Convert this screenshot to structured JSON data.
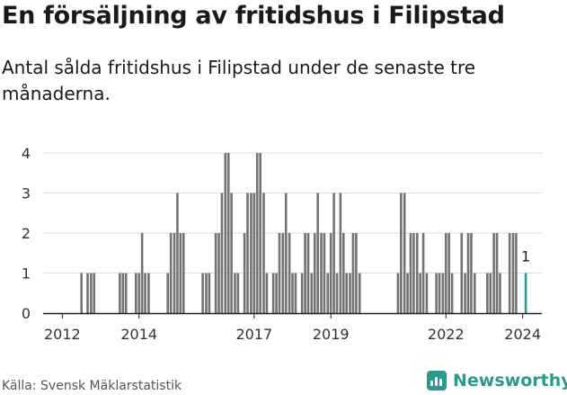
{
  "title": "En försäljning av fritidshus i Filipstad",
  "subtitle": "Antal sålda fritidshus i Filipstad under de senaste tre månaderna.",
  "source": "Källa: Svensk Mäklarstatistik",
  "brand": "Newsworthy",
  "colors": {
    "bar": "#737373",
    "highlight": "#2a9a8e",
    "axis": "#222222",
    "grid": "#dddddd",
    "brand": "#2a9a8e"
  },
  "chart_data": {
    "type": "bar",
    "title": "En försäljning av fritidshus i Filipstad",
    "xlabel": "",
    "ylabel": "",
    "ylim": [
      0,
      4
    ],
    "yticks": [
      "0",
      "1",
      "2",
      "3",
      "4"
    ],
    "xlim": [
      2011.5,
      2024.5
    ],
    "xticks": [
      {
        "value": 2012,
        "label": "2012"
      },
      {
        "value": 2014,
        "label": "2014"
      },
      {
        "value": 2017,
        "label": "2017"
      },
      {
        "value": 2019,
        "label": "2019"
      },
      {
        "value": 2022,
        "label": "2022"
      },
      {
        "value": 2024,
        "label": "2024"
      }
    ],
    "highlight": {
      "x": 2024.08,
      "value": 1,
      "label": "1"
    },
    "x": [
      2012.5,
      2012.66,
      2012.75,
      2012.83,
      2013.5,
      2013.58,
      2013.66,
      2013.92,
      2014.0,
      2014.08,
      2014.16,
      2014.25,
      2014.75,
      2014.83,
      2014.92,
      2015.0,
      2015.08,
      2015.16,
      2015.66,
      2015.75,
      2015.83,
      2016.0,
      2016.08,
      2016.16,
      2016.25,
      2016.33,
      2016.41,
      2016.5,
      2016.58,
      2016.75,
      2016.83,
      2016.92,
      2017.0,
      2017.08,
      2017.16,
      2017.25,
      2017.33,
      2017.5,
      2017.58,
      2017.66,
      2017.75,
      2017.83,
      2017.92,
      2018.0,
      2018.08,
      2018.25,
      2018.33,
      2018.41,
      2018.5,
      2018.58,
      2018.66,
      2018.75,
      2018.83,
      2018.92,
      2019.0,
      2019.08,
      2019.16,
      2019.25,
      2019.33,
      2019.41,
      2019.5,
      2019.58,
      2019.66,
      2019.75,
      2020.75,
      2020.83,
      2020.92,
      2021.0,
      2021.08,
      2021.16,
      2021.25,
      2021.33,
      2021.41,
      2021.5,
      2021.75,
      2021.83,
      2021.92,
      2022.0,
      2022.08,
      2022.16,
      2022.41,
      2022.5,
      2022.58,
      2022.66,
      2022.75,
      2023.08,
      2023.16,
      2023.25,
      2023.33,
      2023.41,
      2023.66,
      2023.75,
      2023.83,
      2024.08
    ],
    "values": [
      1,
      1,
      1,
      1,
      1,
      1,
      1,
      1,
      1,
      2,
      1,
      1,
      1,
      2,
      2,
      3,
      2,
      2,
      1,
      1,
      1,
      2,
      2,
      3,
      4,
      4,
      3,
      1,
      1,
      2,
      3,
      3,
      3,
      4,
      4,
      3,
      1,
      1,
      1,
      2,
      2,
      3,
      2,
      1,
      1,
      1,
      2,
      2,
      1,
      2,
      3,
      2,
      2,
      1,
      2,
      3,
      1,
      3,
      2,
      1,
      1,
      2,
      2,
      1,
      1,
      3,
      3,
      1,
      2,
      2,
      2,
      1,
      2,
      1,
      1,
      1,
      1,
      2,
      2,
      1,
      2,
      1,
      2,
      2,
      1,
      1,
      1,
      2,
      2,
      1,
      2,
      2,
      2,
      1
    ]
  }
}
